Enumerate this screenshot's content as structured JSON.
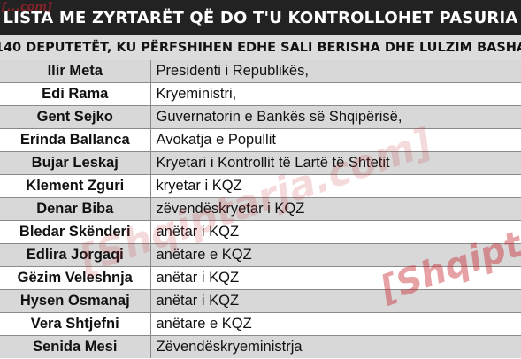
{
  "header": {
    "title": "LISTA ME ZYRTARËT QË DO T'U KONTROLLOHET PASURIA",
    "subtitle": "140 DEPUTETËT, KU PËRFSHIHEN EDHE SALI BERISHA DHE LULZIM BASHA"
  },
  "watermarks": {
    "corner": "[...com]",
    "center": "[Shqiptarja.com]",
    "right": "[Shqipt"
  },
  "officials": [
    {
      "name": "Ilir Meta",
      "role": "Presidenti i Republikës,"
    },
    {
      "name": "Edi Rama",
      "role": "Kryeministri,"
    },
    {
      "name": "Gent Sejko",
      "role": "Guvernatorin e Bankës së Shqipërisë,"
    },
    {
      "name": "Erinda Ballanca",
      "role": "Avokatja e Popullit"
    },
    {
      "name": "Bujar Leskaj",
      "role": "Kryetari i Kontrollit të Lartë të Shtetit"
    },
    {
      "name": "Klement Zguri",
      "role": "kryetar i KQZ"
    },
    {
      "name": "Denar Biba",
      "role": "zëvendëskryetar i KQZ"
    },
    {
      "name": "Bledar Skënderi",
      "role": "anëtar i KQZ"
    },
    {
      "name": "Edlira Jorgaqi",
      "role": "anëtare e KQZ"
    },
    {
      "name": "Gëzim Veleshnja",
      "role": "anëtar i KQZ"
    },
    {
      "name": "Hysen Osmanaj",
      "role": "anëtar i KQZ"
    },
    {
      "name": "Vera Shtjefni",
      "role": "anëtare e KQZ"
    },
    {
      "name": "Senida Mesi",
      "role": "Zëvendëskryeministrja"
    }
  ]
}
